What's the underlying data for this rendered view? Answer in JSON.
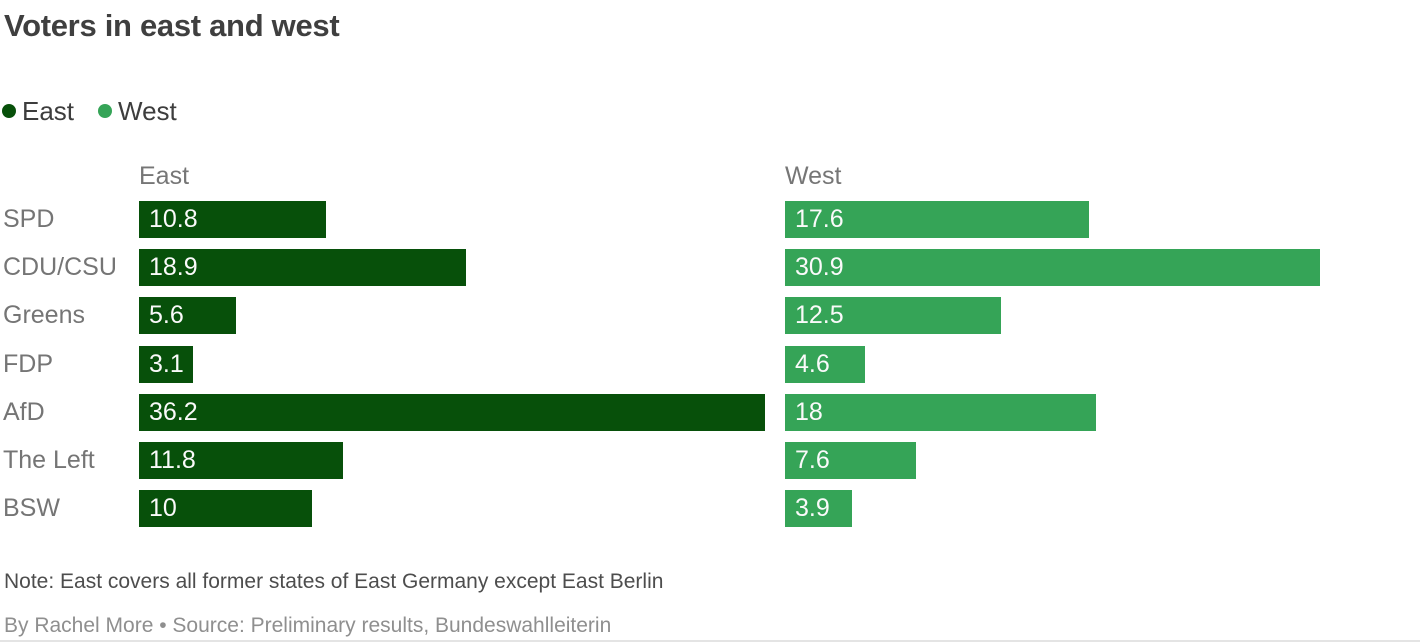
{
  "title": "Voters in east and west",
  "legend": {
    "items": [
      {
        "label": "East",
        "color": "#07500a"
      },
      {
        "label": "West",
        "color": "#35a457"
      }
    ]
  },
  "columns": {
    "east": "East",
    "west": "West"
  },
  "chart_data": {
    "type": "bar",
    "orientation": "horizontal",
    "title": "Voters in east and west",
    "categories": [
      "SPD",
      "CDU/CSU",
      "Greens",
      "FDP",
      "AfD",
      "The Left",
      "BSW"
    ],
    "series": [
      {
        "name": "East",
        "color": "#07500a",
        "values": [
          10.8,
          18.9,
          5.6,
          3.1,
          36.2,
          11.8,
          10
        ]
      },
      {
        "name": "West",
        "color": "#35a457",
        "values": [
          17.6,
          30.9,
          12.5,
          4.6,
          18,
          7.6,
          3.9
        ]
      }
    ],
    "value_labels_inside_bars": true,
    "xlim": [
      0,
      37.5
    ],
    "grid": false,
    "legend_position": "top-left"
  },
  "note": "Note: East covers all former states of East Germany except East Berlin",
  "byline": "By Rachel More • Source: Preliminary results, Bundeswahlleiterin"
}
